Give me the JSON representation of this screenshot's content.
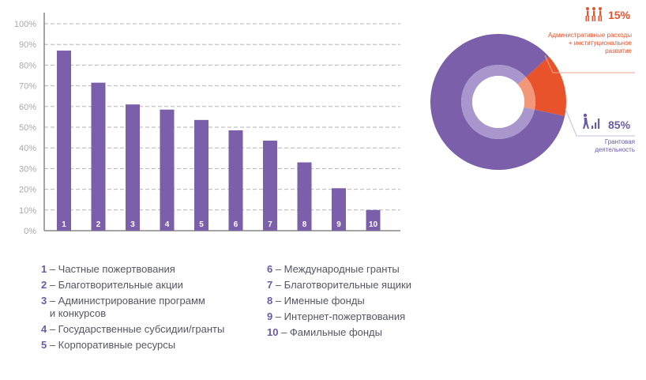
{
  "chart_data": [
    {
      "type": "bar",
      "categories": [
        "1",
        "2",
        "3",
        "4",
        "5",
        "6",
        "7",
        "8",
        "9",
        "10"
      ],
      "values": [
        87,
        71.5,
        61,
        58.5,
        53.5,
        48.5,
        43.5,
        33,
        20.5,
        10
      ],
      "ylim": [
        0,
        100
      ],
      "ytick_labels": [
        "0%",
        "10%",
        "20%",
        "30%",
        "40%",
        "50%",
        "60%",
        "70%",
        "80%",
        "90%",
        "100%"
      ],
      "grid": true,
      "bar_color": "#7b5faa"
    },
    {
      "type": "pie",
      "style": "donut",
      "slices": [
        {
          "label": "Административные расходы + институциональное развитие",
          "value": 15,
          "pct_label": "15%",
          "color": "#e8532b",
          "inner_color": "#f2977a"
        },
        {
          "label": "Грантовая деятельность",
          "value": 85,
          "pct_label": "85%",
          "color": "#7b5faa",
          "inner_color": "#a896cc"
        }
      ]
    }
  ],
  "legend": {
    "left": [
      {
        "num": "1",
        "text": "– Частные пожертвования"
      },
      {
        "num": "2",
        "text": "– Благотворительные акции"
      },
      {
        "num": "3",
        "text": "– Администрирование программ\nи конкурсов"
      },
      {
        "num": "4",
        "text": "– Государственные субсидии/гранты"
      },
      {
        "num": "5",
        "text": "– Корпоративные ресурсы"
      }
    ],
    "right": [
      {
        "num": "6",
        "text": "– Международные гранты"
      },
      {
        "num": "7",
        "text": "– Благотворительные ящики"
      },
      {
        "num": "8",
        "text": "– Именные фонды"
      },
      {
        "num": "9",
        "text": "– Интернет-пожертвования"
      },
      {
        "num": "10",
        "text": "– Фамильные фонды"
      }
    ]
  },
  "callouts": {
    "admin": {
      "pct": "15%",
      "desc": "Административные расходы\n+ институциональное\nразвитие",
      "icon": "people-walking-icon",
      "color": "#e8532b"
    },
    "grant": {
      "pct": "85%",
      "desc": "Грантовая\nдеятельность",
      "icon": "person-growth-icon",
      "color": "#6a5aa8"
    }
  }
}
